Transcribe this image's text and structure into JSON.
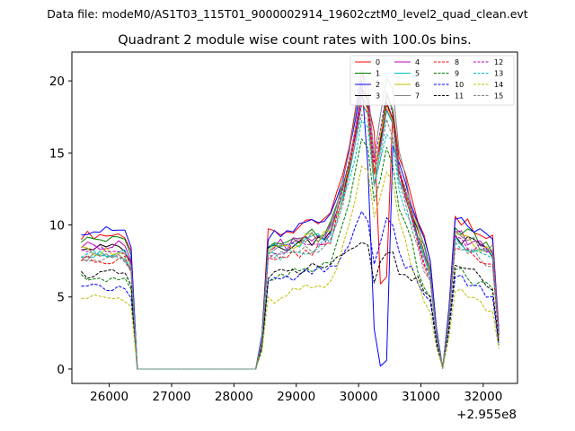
{
  "chart_data": {
    "type": "line",
    "suptitle": "Data file: modeM0/AS1T03_115T01_9000002914_19602cztM0_level2_quad_clean.evt",
    "title": "Quadrant 2 module wise count rates with 100.0s bins.",
    "xlabel": "",
    "ylabel": "",
    "x_offset_label": "+2.955e8",
    "xlim": [
      25400,
      32550
    ],
    "ylim": [
      -1.0,
      22.0
    ],
    "xticks": [
      26000,
      27000,
      28000,
      29000,
      30000,
      31000,
      32000
    ],
    "yticks": [
      0,
      5,
      10,
      15,
      20
    ],
    "legend_position": "top-right",
    "x": [
      25550,
      25650,
      25750,
      25850,
      25950,
      26050,
      26150,
      26250,
      26350,
      26450,
      26550,
      26650,
      26750,
      26850,
      26950,
      27050,
      27150,
      27250,
      27350,
      27450,
      27550,
      27650,
      27750,
      27850,
      27950,
      28050,
      28150,
      28250,
      28350,
      28450,
      28550,
      28650,
      28750,
      28850,
      28950,
      29050,
      29150,
      29250,
      29350,
      29450,
      29550,
      29650,
      29750,
      29850,
      29950,
      30050,
      30150,
      30250,
      30350,
      30450,
      30550,
      30650,
      30750,
      30850,
      30950,
      31050,
      31150,
      31250,
      31350,
      31450,
      31550,
      31650,
      31750,
      31850,
      31950,
      32050,
      32150,
      32250
    ],
    "series": [
      {
        "name": "0",
        "color": "#ff0000",
        "dash": "solid",
        "peak": 20.5,
        "dip": "deep",
        "dipMin": 5.9,
        "b1": 9.3,
        "b2": 9.3,
        "b3": 10.6
      },
      {
        "name": "1",
        "color": "#008000",
        "dash": "solid",
        "peak": 19.2,
        "dip": "none",
        "b1": 9.0,
        "b2": 8.6,
        "b3": 9.8
      },
      {
        "name": "2",
        "color": "#0000ff",
        "dash": "solid",
        "peak": 19.7,
        "dip": "zero",
        "b1": 9.6,
        "b2": 9.4,
        "b3": 10.4
      },
      {
        "name": "3",
        "color": "#000000",
        "dash": "solid",
        "peak": 19.0,
        "dip": "none",
        "b1": 8.4,
        "b2": 8.2,
        "b3": 9.3
      },
      {
        "name": "4",
        "color": "#bf00bf",
        "dash": "solid",
        "peak": 18.8,
        "dip": "none",
        "b1": 8.6,
        "b2": 8.4,
        "b3": 9.5
      },
      {
        "name": "5",
        "color": "#00bfbf",
        "dash": "solid",
        "peak": 18.2,
        "dip": "none",
        "b1": 8.0,
        "b2": 8.2,
        "b3": 9.1
      },
      {
        "name": "6",
        "color": "#bfbf00",
        "dash": "solid",
        "peak": 18.9,
        "dip": "none",
        "b1": 8.2,
        "b2": 8.3,
        "b3": 9.4
      },
      {
        "name": "7",
        "color": "#808080",
        "dash": "solid",
        "peak": 20.9,
        "dip": "none",
        "b1": 7.8,
        "b2": 8.4,
        "b3": 9.6
      },
      {
        "name": "8",
        "color": "#ff0000",
        "dash": "dashed",
        "peak": 18.6,
        "dip": "none",
        "b1": 7.6,
        "b2": 7.6,
        "b3": 8.4
      },
      {
        "name": "9",
        "color": "#008000",
        "dash": "dashed",
        "peak": 15.7,
        "dip": "none",
        "b1": 6.3,
        "b2": 6.2,
        "b3": 6.9
      },
      {
        "name": "10",
        "color": "#0000ff",
        "dash": "dashed",
        "peak": 10.6,
        "dip": "none",
        "b1": 5.6,
        "b2": 5.9,
        "b3": 6.4
      },
      {
        "name": "11",
        "color": "#000000",
        "dash": "dashed",
        "peak": 8.6,
        "dip": "none",
        "b1": 6.6,
        "b2": 6.3,
        "b3": 7.2
      },
      {
        "name": "12",
        "color": "#bf00bf",
        "dash": "dashed",
        "peak": 19.5,
        "dip": "none",
        "b1": 8.3,
        "b2": 8.0,
        "b3": 9.2
      },
      {
        "name": "13",
        "color": "#00bfbf",
        "dash": "dashed",
        "peak": 17.2,
        "dip": "none",
        "b1": 7.9,
        "b2": 7.8,
        "b3": 8.8
      },
      {
        "name": "14",
        "color": "#bfbf00",
        "dash": "dashed",
        "peak": 14.3,
        "dip": "none",
        "b1": 4.9,
        "b2": 4.9,
        "b3": 5.4
      },
      {
        "name": "15",
        "color": "#808080",
        "dash": "dashed",
        "peak": 17.8,
        "dip": "none",
        "b1": 7.7,
        "b2": 7.7,
        "b3": 8.7
      }
    ]
  }
}
